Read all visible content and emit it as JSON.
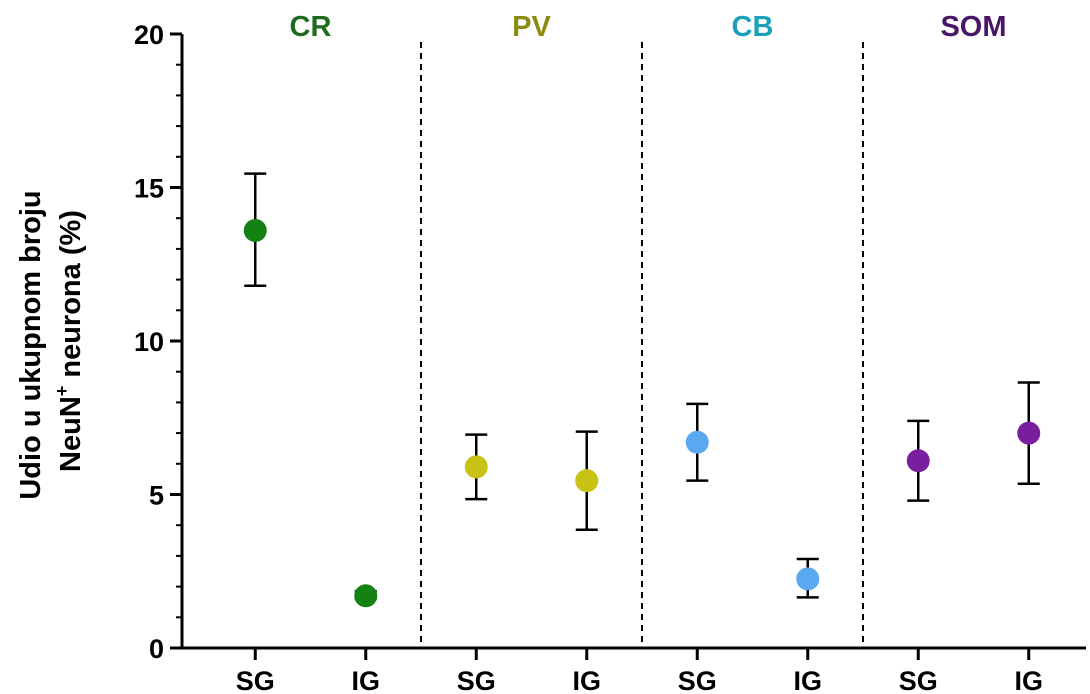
{
  "chart_data": {
    "type": "scatter",
    "ylabel_line1": "Udio u ukupnom broju",
    "ylabel_line2_prefix": "NeuN",
    "ylabel_line2_sup": "+",
    "ylabel_line2_suffix": " neurona (%)",
    "ylim": [
      0,
      20
    ],
    "yticks": [
      "0",
      "5",
      "10",
      "15",
      "20"
    ],
    "ytick_values": [
      0,
      5,
      10,
      15,
      20
    ],
    "yminor_step": 1,
    "grid": false,
    "categories": [
      "SG",
      "IG",
      "SG",
      "IG",
      "SG",
      "IG",
      "SG",
      "IG"
    ],
    "groups": [
      {
        "name": "CR",
        "color": "#1e6b1e",
        "marker_color": "#138213",
        "points": [
          {
            "x": "SG",
            "mean": 13.6,
            "low": 11.8,
            "high": 15.45
          },
          {
            "x": "IG",
            "mean": 1.7,
            "low": 1.6,
            "high": 1.85
          }
        ]
      },
      {
        "name": "PV",
        "color": "#8c8c10",
        "marker_color": "#c8c214",
        "points": [
          {
            "x": "SG",
            "mean": 5.9,
            "low": 4.85,
            "high": 6.95
          },
          {
            "x": "IG",
            "mean": 5.45,
            "low": 3.85,
            "high": 7.05
          }
        ]
      },
      {
        "name": "CB",
        "color": "#1aa0b8",
        "marker_color": "#5aa8f0",
        "points": [
          {
            "x": "SG",
            "mean": 6.7,
            "low": 5.45,
            "high": 7.95
          },
          {
            "x": "IG",
            "mean": 2.25,
            "low": 1.65,
            "high": 2.9
          }
        ]
      },
      {
        "name": "SOM",
        "color": "#4a1668",
        "marker_color": "#7a1ea0",
        "points": [
          {
            "x": "SG",
            "mean": 6.1,
            "low": 4.8,
            "high": 7.4
          },
          {
            "x": "IG",
            "mean": 7.0,
            "low": 5.35,
            "high": 8.65
          }
        ]
      }
    ]
  }
}
